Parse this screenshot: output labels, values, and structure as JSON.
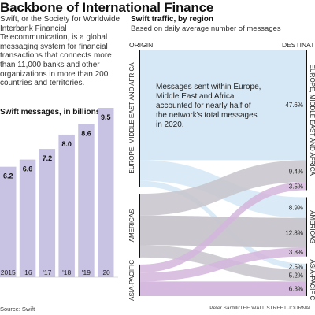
{
  "header": {
    "title": "Backbone of International Finance",
    "intro": "Swift, or the Society for Worldwide Interbank Financial Telecommunication, is a global messaging system for financial transactions that connects more than 11,000 banks and other organizations in more than 200 countries and territories."
  },
  "footer": {
    "source": "Source: Swift",
    "credit": "Peter Santilli/THE WALL STREET JOURNAL"
  },
  "colors": {
    "bar": "#c9c3e3",
    "europe": "#d4e7f6",
    "americas": "#c7c4cb",
    "asia_pacific": "#d3b5dc",
    "node": "#111111"
  },
  "chart_data": [
    {
      "type": "bar",
      "title": "Swift messages, in billions",
      "categories": [
        "2015",
        "'16",
        "'17",
        "'18",
        "'19",
        "'20"
      ],
      "values": [
        6.2,
        6.6,
        7.2,
        8.0,
        8.6,
        9.5
      ],
      "ylim": [
        0,
        9.5
      ]
    },
    {
      "type": "sankey",
      "title": "Swift traffic, by region",
      "subtitle": "Based on daily average number of messages",
      "left_header": "ORIGIN",
      "right_header": "DESTINATION",
      "annotation": "Messages sent within Europe, Middle East and Africa accounted for nearly half of the network's total messages in 2020.",
      "nodes": [
        "EUROPE, MIDDLE EAST AND AFRICA",
        "AMERICAS",
        "ASIA-PACIFIC"
      ],
      "flows": [
        {
          "from": "EUROPE, MIDDLE EAST AND AFRICA",
          "to": "EUROPE, MIDDLE EAST AND AFRICA",
          "value": 47.6,
          "label": "47.6%"
        },
        {
          "from": "EUROPE, MIDDLE EAST AND AFRICA",
          "to": "AMERICAS",
          "value": 8.9,
          "label": "8.9%"
        },
        {
          "from": "EUROPE, MIDDLE EAST AND AFRICA",
          "to": "ASIA-PACIFIC",
          "value": 2.5,
          "label": "2.5%"
        },
        {
          "from": "AMERICAS",
          "to": "EUROPE, MIDDLE EAST AND AFRICA",
          "value": 9.4,
          "label": "9.4%"
        },
        {
          "from": "AMERICAS",
          "to": "AMERICAS",
          "value": 12.8,
          "label": "12.8%"
        },
        {
          "from": "AMERICAS",
          "to": "ASIA-PACIFIC",
          "value": 5.2,
          "label": "5.2%"
        },
        {
          "from": "ASIA-PACIFIC",
          "to": "EUROPE, MIDDLE EAST AND AFRICA",
          "value": 3.5,
          "label": "3.5%"
        },
        {
          "from": "ASIA-PACIFIC",
          "to": "AMERICAS",
          "value": 3.8,
          "label": "3.8%"
        },
        {
          "from": "ASIA-PACIFIC",
          "to": "ASIA-PACIFIC",
          "value": 6.3,
          "label": "6.3%"
        }
      ]
    }
  ]
}
